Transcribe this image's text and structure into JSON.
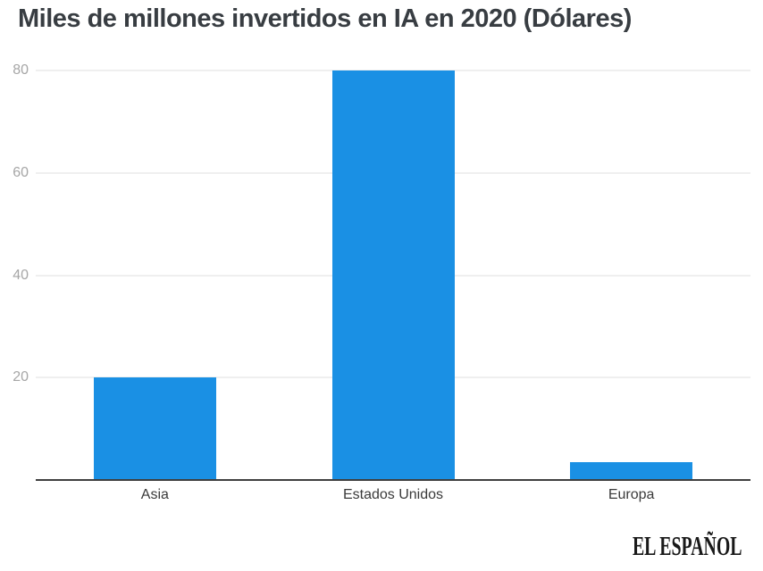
{
  "title": "Miles de millones invertidos en IA en 2020 (Dólares)",
  "logo": {
    "text": "EL ESPAÑOL"
  },
  "colors": {
    "bar": "#1a90e4",
    "grid": "#efefef",
    "axis": "#3f3f3f",
    "y_tick_label": "#a6a6a6",
    "x_tick_label": "#3a3a3a",
    "title": "#383d42",
    "background": "#ffffff"
  },
  "chart_data": {
    "type": "bar",
    "categories": [
      "Asia",
      "Estados Unidos",
      "Europa"
    ],
    "values": [
      20,
      80,
      3.5
    ],
    "title": "Miles de millones invertidos en IA en 2020 (Dólares)",
    "xlabel": "",
    "ylabel": "",
    "ylim": [
      0,
      80
    ],
    "yticks": [
      20,
      40,
      60,
      80
    ],
    "grid": true,
    "legend": false,
    "source_logo": "EL ESPAÑOL"
  }
}
